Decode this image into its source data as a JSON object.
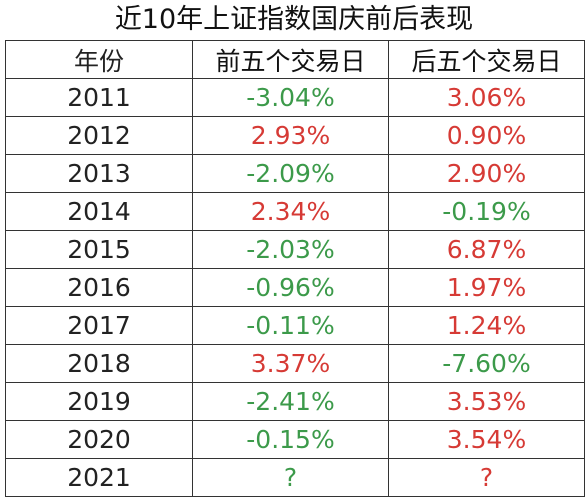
{
  "title": "近10年上证指数国庆前后表现",
  "colors": {
    "positive": "#d63a35",
    "negative": "#3c9a4a",
    "text": "#111111",
    "border": "#333333"
  },
  "headers": {
    "year": "年份",
    "before": "前五个交易日",
    "after": "后五个交易日"
  },
  "rows": [
    {
      "year": "2011",
      "before": "-3.04%",
      "before_tone": "neg",
      "after": "3.06%",
      "after_tone": "pos"
    },
    {
      "year": "2012",
      "before": "2.93%",
      "before_tone": "pos",
      "after": "0.90%",
      "after_tone": "pos"
    },
    {
      "year": "2013",
      "before": "-2.09%",
      "before_tone": "neg",
      "after": "2.90%",
      "after_tone": "pos"
    },
    {
      "year": "2014",
      "before": "2.34%",
      "before_tone": "pos",
      "after": "-0.19%",
      "after_tone": "neg"
    },
    {
      "year": "2015",
      "before": "-2.03%",
      "before_tone": "neg",
      "after": "6.87%",
      "after_tone": "pos"
    },
    {
      "year": "2016",
      "before": "-0.96%",
      "before_tone": "neg",
      "after": "1.97%",
      "after_tone": "pos"
    },
    {
      "year": "2017",
      "before": "-0.11%",
      "before_tone": "neg",
      "after": "1.24%",
      "after_tone": "pos"
    },
    {
      "year": "2018",
      "before": "3.37%",
      "before_tone": "pos",
      "after": "-7.60%",
      "after_tone": "neg"
    },
    {
      "year": "2019",
      "before": "-2.41%",
      "before_tone": "neg",
      "after": "3.53%",
      "after_tone": "pos"
    },
    {
      "year": "2020",
      "before": "-0.15%",
      "before_tone": "neg",
      "after": "3.54%",
      "after_tone": "pos"
    },
    {
      "year": "2021",
      "before": "?",
      "before_tone": "neg",
      "after": "?",
      "after_tone": "pos"
    }
  ]
}
